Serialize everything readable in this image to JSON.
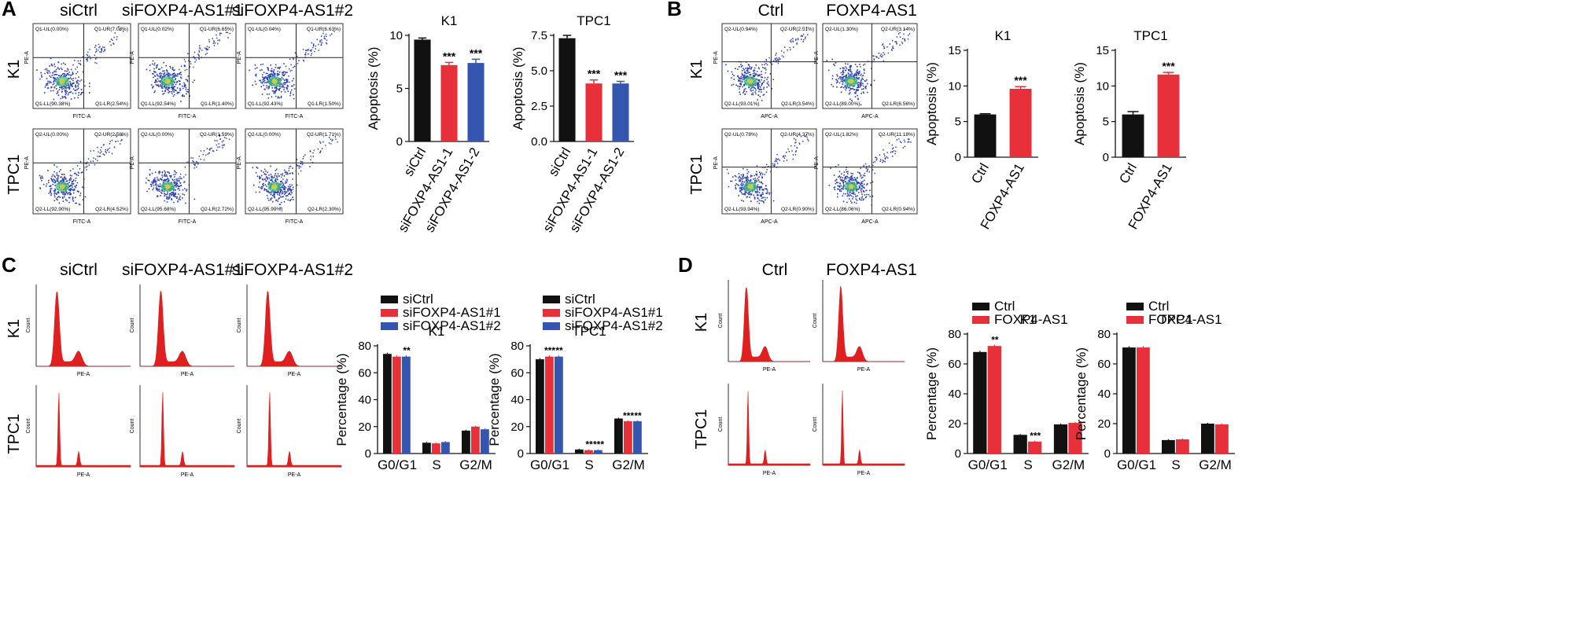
{
  "panels": {
    "A": {
      "letter": "A",
      "column_titles": [
        "siCtrl",
        "siFOXP4-AS1#1",
        "siFOXP4-AS1#2"
      ],
      "row_labels": [
        "K1",
        "TPC1"
      ],
      "x_axis_label": "FITC-A",
      "y_axis_label": "PE-A",
      "quadrants": [
        [
          {
            "ul": "Q1-UL(0.00%)",
            "ur": "Q1-UR(7.08%)",
            "ll": "Q1-LL(90.38%)",
            "lr": "Q1-LR(2.54%)"
          },
          {
            "ul": "Q1-UL(0.02%)",
            "ur": "Q1-UR(6.65%)",
            "ll": "Q1-LL(92.54%)",
            "lr": "Q1-LR(1.40%)"
          },
          {
            "ul": "Q1-UL(0.04%)",
            "ur": "Q1-UR(6.63%)",
            "ll": "Q1-LL(92.43%)",
            "lr": "Q1-LR(1.50%)"
          }
        ],
        [
          {
            "ul": "Q2-UL(0.00%)",
            "ur": "Q2-UR(2.58%)",
            "ll": "Q2-LL(92.90%)",
            "lr": "Q2-LR(4.52%)"
          },
          {
            "ul": "Q2-UL(0.00%)",
            "ur": "Q2-UR(1.59%)",
            "ll": "Q2-LL(95.68%)",
            "lr": "Q2-LR(2.72%)"
          },
          {
            "ul": "Q2-UL(0.00%)",
            "ur": "Q2-UR(1.71%)",
            "ll": "Q2-LL(95.99%)",
            "lr": "Q2-LR(2.30%)"
          }
        ]
      ]
    },
    "B": {
      "letter": "B",
      "column_titles": [
        "Ctrl",
        "FOXP4-AS1"
      ],
      "row_labels": [
        "K1",
        "TPC1"
      ],
      "x_axis_label": "APC-A",
      "y_axis_label": "PE-A",
      "quadrants": [
        [
          {
            "ul": "Q2-UL(0.94%)",
            "ur": "Q2-UR(2.51%)",
            "ll": "Q2-LL(93.01%)",
            "lr": "Q2-LR(3.54%)"
          },
          {
            "ul": "Q2-UL(1.30%)",
            "ur": "Q2-UR(3.14%)",
            "ll": "Q2-LL(89.00%)",
            "lr": "Q2-LR(6.56%)"
          }
        ],
        [
          {
            "ul": "Q2-UL(0.78%)",
            "ur": "Q2-UR(4.37%)",
            "ll": "Q2-LL(93.94%)",
            "lr": "Q2-LR(0.90%)"
          },
          {
            "ul": "Q2-UL(1.82%)",
            "ur": "Q2-UR(11.18%)",
            "ll": "Q2-LL(86.06%)",
            "lr": "Q2-LR(0.94%)"
          }
        ]
      ]
    },
    "C": {
      "letter": "C",
      "column_titles": [
        "siCtrl",
        "siFOXP4-AS1#1",
        "siFOXP4-AS1#2"
      ],
      "row_labels": [
        "K1",
        "TPC1"
      ],
      "x_axis_label": "PE-A",
      "y_axis_label": "Count"
    },
    "D": {
      "letter": "D",
      "column_titles": [
        "Ctrl",
        "FOXP4-AS1"
      ],
      "row_labels": [
        "K1",
        "TPC1"
      ],
      "x_axis_label": "PE-A",
      "y_axis_label": "Count"
    }
  },
  "colors": {
    "black": "#111111",
    "red": "#e8303a",
    "blue": "#3456b0",
    "density": "#2a3fb8",
    "histogram": "#e02020"
  },
  "chart_data": [
    {
      "id": "A-K1",
      "type": "bar",
      "title": "K1",
      "ylabel": "Apoptosis (%)",
      "ylim": [
        0,
        10
      ],
      "yticks": [
        0,
        5,
        10
      ],
      "categories": [
        "siCtrl",
        "siFOXP4-AS1-1",
        "siFOXP4-AS1-2"
      ],
      "values": [
        9.6,
        7.2,
        7.4
      ],
      "errors": [
        0.15,
        0.25,
        0.35
      ],
      "sig": [
        "",
        "***",
        "***"
      ],
      "colors": [
        "#111111",
        "#e8303a",
        "#3456b0"
      ]
    },
    {
      "id": "A-TPC1",
      "type": "bar",
      "title": "TPC1",
      "ylabel": "Apoptosis (%)",
      "ylim": [
        0,
        7.5
      ],
      "yticks": [
        0.0,
        2.5,
        5.0,
        7.5
      ],
      "categories": [
        "siCtrl",
        "siFOXP4-AS1-1",
        "siFOXP4-AS1-2"
      ],
      "values": [
        7.3,
        4.1,
        4.1
      ],
      "errors": [
        0.2,
        0.25,
        0.15
      ],
      "sig": [
        "",
        "***",
        "***"
      ],
      "colors": [
        "#111111",
        "#e8303a",
        "#3456b0"
      ]
    },
    {
      "id": "B-K1",
      "type": "bar",
      "title": "K1",
      "ylabel": "Apoptosis (%)",
      "ylim": [
        0,
        15
      ],
      "yticks": [
        0,
        5,
        10,
        15
      ],
      "categories": [
        "Ctrl",
        "FOXP4-AS1"
      ],
      "values": [
        6.0,
        9.6
      ],
      "errors": [
        0.1,
        0.3
      ],
      "sig": [
        "",
        "***"
      ],
      "colors": [
        "#111111",
        "#e8303a"
      ]
    },
    {
      "id": "B-TPC1",
      "type": "bar",
      "title": "TPC1",
      "ylabel": "Apoptosis (%)",
      "ylim": [
        0,
        15
      ],
      "yticks": [
        0,
        5,
        10,
        15
      ],
      "categories": [
        "Ctrl",
        "FOXP4-AS1"
      ],
      "values": [
        6.0,
        11.6
      ],
      "errors": [
        0.4,
        0.3
      ],
      "sig": [
        "",
        "***"
      ],
      "colors": [
        "#111111",
        "#e8303a"
      ]
    },
    {
      "id": "C-K1",
      "type": "bar",
      "title": "K1",
      "ylabel": "Percentage (%)",
      "ylim": [
        0,
        80
      ],
      "yticks": [
        0,
        20,
        40,
        60,
        80
      ],
      "categories": [
        "G0/G1",
        "S",
        "G2/M"
      ],
      "series": [
        {
          "name": "siCtrl",
          "color": "#111111",
          "values": [
            74,
            8,
            17
          ],
          "sig": [
            "",
            "",
            ""
          ]
        },
        {
          "name": "siFOXP4-AS1#1",
          "color": "#e8303a",
          "values": [
            72,
            7.5,
            20
          ],
          "sig": [
            "",
            "",
            ""
          ]
        },
        {
          "name": "siFOXP4-AS1#2",
          "color": "#3456b0",
          "values": [
            72,
            8.5,
            18
          ],
          "sig": [
            "**",
            "",
            ""
          ]
        }
      ]
    },
    {
      "id": "C-TPC1",
      "type": "bar",
      "title": "TPC1",
      "ylabel": "Percentage (%)",
      "ylim": [
        0,
        80
      ],
      "yticks": [
        0,
        20,
        40,
        60,
        80
      ],
      "categories": [
        "G0/G1",
        "S",
        "G2/M"
      ],
      "series": [
        {
          "name": "siCtrl",
          "color": "#111111",
          "values": [
            70,
            3,
            26
          ],
          "sig": [
            "",
            "",
            ""
          ]
        },
        {
          "name": "siFOXP4-AS1#1",
          "color": "#e8303a",
          "values": [
            72,
            2.5,
            24
          ],
          "sig": [
            "***",
            "**",
            "***"
          ]
        },
        {
          "name": "siFOXP4-AS1#2",
          "color": "#3456b0",
          "values": [
            72,
            2.5,
            24
          ],
          "sig": [
            "**",
            "***",
            "**"
          ]
        }
      ]
    },
    {
      "id": "D-K1",
      "type": "bar",
      "title": "K1",
      "ylabel": "Percentage (%)",
      "ylim": [
        0,
        80
      ],
      "yticks": [
        0,
        20,
        40,
        60,
        80
      ],
      "categories": [
        "G0/G1",
        "S",
        "G2/M"
      ],
      "series": [
        {
          "name": "Ctrl",
          "color": "#111111",
          "values": [
            68,
            12.5,
            19.5
          ],
          "sig": [
            "",
            "",
            ""
          ]
        },
        {
          "name": "FOXP4-AS1",
          "color": "#e8303a",
          "values": [
            72,
            8,
            20.5
          ],
          "sig": [
            "**",
            "***",
            ""
          ]
        }
      ]
    },
    {
      "id": "D-TPC1",
      "type": "bar",
      "title": "TPC1",
      "ylabel": "Percentage (%)",
      "ylim": [
        0,
        80
      ],
      "yticks": [
        0,
        20,
        40,
        60,
        80
      ],
      "categories": [
        "G0/G1",
        "S",
        "G2/M"
      ],
      "series": [
        {
          "name": "Ctrl",
          "color": "#111111",
          "values": [
            71,
            9,
            20
          ],
          "sig": [
            "",
            "",
            ""
          ]
        },
        {
          "name": "FOXP4-AS1",
          "color": "#e8303a",
          "values": [
            71,
            9.5,
            19.5
          ],
          "sig": [
            "",
            "",
            ""
          ]
        }
      ]
    }
  ]
}
